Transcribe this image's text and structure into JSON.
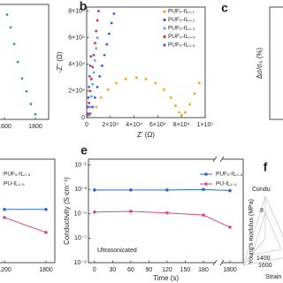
{
  "chart_data": [
    {
      "type": "scatter",
      "color": "#3aa65a",
      "x": [
        1617,
        1640,
        1663,
        1686,
        1714,
        1743,
        1771,
        1800
      ],
      "values": [
        82000,
        72000,
        59000,
        45000,
        32000,
        22000,
        12000,
        4000
      ],
      "xlim": [
        1514,
        1886
      ],
      "ylim": [
        0,
        90000
      ],
      "xticks": [
        1600,
        1800
      ]
    },
    {
      "type": "scatter",
      "label": "b",
      "xlabel": "Z' (Ω)",
      "ylabel": "-Z'' (Ω)",
      "xlim": [
        0,
        100000
      ],
      "ylim": [
        0,
        83000
      ],
      "xticks": [
        0,
        {
          "value": 20000,
          "label": "2×10⁴"
        },
        {
          "value": 40000,
          "label": "4×10⁴"
        },
        {
          "value": 60000,
          "label": "6×10⁴"
        },
        {
          "value": 80000,
          "label": "8×10⁴"
        },
        {
          "value": 100000,
          "label": "1×10⁵"
        }
      ],
      "yticks": [
        0,
        {
          "value": 20000,
          "label": "2×10⁴"
        },
        {
          "value": 40000,
          "label": "4×10⁴"
        },
        {
          "value": 60000,
          "label": "6×10⁴"
        },
        {
          "value": 80000,
          "label": "8×10⁴"
        }
      ],
      "series": [
        {
          "name": "PUF₅-IL₀.₁",
          "color": "#f5a623",
          "x": [
            8000,
            12000,
            18000,
            25000,
            33000,
            42000,
            50000,
            58000,
            65000,
            71000,
            75000,
            78000,
            80000,
            83000,
            87000,
            91000,
            95000
          ],
          "values": [
            8000,
            15000,
            21000,
            26000,
            29000,
            30000,
            29000,
            26000,
            21000,
            15000,
            9000,
            4000,
            2000,
            4000,
            10000,
            18000,
            26000
          ]
        },
        {
          "name": "PUF₅-IL₀.₂",
          "color": "#3b5bdb",
          "x": [
            3000,
            5000,
            7000,
            9000,
            11000,
            13000,
            15000,
            17000,
            19000,
            21000,
            23000
          ],
          "values": [
            3000,
            8000,
            15000,
            23000,
            31000,
            39000,
            47000,
            55000,
            63000,
            71000,
            78000
          ]
        },
        {
          "name": "PUF₅-IL₀.₃",
          "color": "#4dabf7",
          "x": [
            2000,
            3000,
            4000,
            5000,
            6000,
            7000,
            8000,
            9000
          ],
          "values": [
            2000,
            8000,
            16000,
            25000,
            34000,
            43000,
            52000,
            60000
          ]
        },
        {
          "name": "PUF₅-IL₀.₄",
          "color": "#e03131",
          "x": [
            1000,
            2000,
            3000,
            4000,
            5000,
            6000,
            7000,
            8000,
            9000,
            10000
          ],
          "values": [
            3000,
            11000,
            20000,
            29000,
            38000,
            47000,
            56000,
            65000,
            73000,
            80000
          ]
        },
        {
          "name": "PUF₅-IL₀.₅",
          "color": "#7048e8",
          "x": [
            500,
            1000,
            1500,
            2000,
            2500,
            3000,
            3500
          ],
          "values": [
            2000,
            8000,
            15000,
            23000,
            31000,
            39000,
            46000
          ]
        }
      ]
    },
    {
      "type": "line",
      "label": "c",
      "ylabel": "Δσ/σ₀ (%)"
    },
    {
      "type": "line",
      "ylog": true,
      "xlim": [
        1008,
        1928
      ],
      "ylim": [
        1e-09,
        0.3
      ],
      "xticks": [
        1200,
        1800
      ],
      "series": [
        {
          "name": "PUF₅-IL₀.₅",
          "color": "#2b6cc4",
          "x": [
            1200,
            1800
          ],
          "values": [
            2.3e-05,
            2.3e-05
          ]
        },
        {
          "name": "PU-IL₀.₅",
          "color": "#e0457b",
          "x": [
            1200,
            1800
          ],
          "values": [
            5e-06,
            3e-07
          ]
        }
      ]
    },
    {
      "type": "line",
      "label": "e",
      "xlabel": "Time (s)",
      "ylabel": "Conductivity (S·cm⁻¹)",
      "annotation": "Ultrasonicated",
      "ylog": true,
      "xbreak": true,
      "xlim": [
        -10,
        1822
      ],
      "ylim": [
        1e-09,
        0.3
      ],
      "xticks": [
        0,
        30,
        60,
        90,
        120,
        150,
        180,
        1800
      ],
      "yticks": [
        {
          "value": 1e-09,
          "label": "10⁻⁹"
        },
        {
          "value": 1e-07,
          "label": "10⁻⁷"
        },
        {
          "value": 1e-05,
          "label": "10⁻⁵"
        },
        {
          "value": 0.001,
          "label": "10⁻³"
        },
        {
          "value": 0.1,
          "label": "10⁻¹"
        }
      ],
      "series": [
        {
          "name": "PUF₅-IL₀.₅",
          "color": "#2b6cc4",
          "x": [
            0,
            60,
            120,
            180,
            1800
          ],
          "values": [
            0.0009,
            0.0009,
            0.0009,
            0.001,
            0.0008
          ]
        },
        {
          "name": "PU-IL₀.₅",
          "color": "#e0457b",
          "x": [
            0,
            60,
            120,
            180,
            1800
          ],
          "values": [
            1.4e-05,
            1.6e-05,
            1.2e-05,
            8e-06,
            8e-07
          ]
        }
      ]
    },
    {
      "type": "radar",
      "label": "f",
      "axes": [
        "Condu",
        "Young's modulus (MPa)",
        "Strain"
      ],
      "tick_labels": [
        "8",
        "1400",
        "1600"
      ]
    }
  ]
}
